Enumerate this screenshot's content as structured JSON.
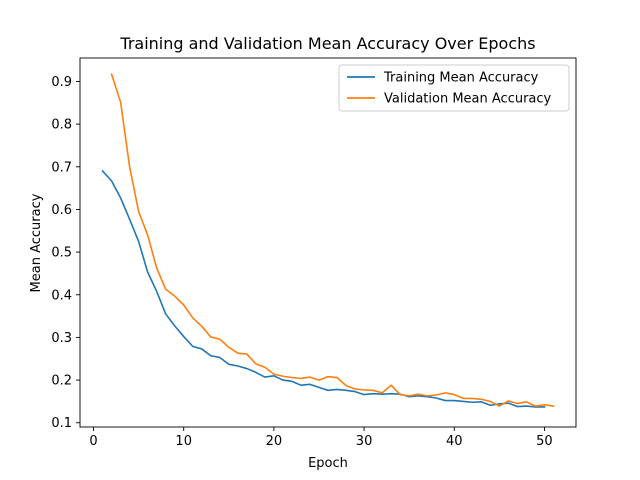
{
  "chart_data": {
    "type": "line",
    "title": "Training and Validation Mean Accuracy Over Epochs",
    "xlabel": "Epoch",
    "ylabel": "Mean Accuracy",
    "xlim": [
      -1.5,
      53.5
    ],
    "ylim": [
      0.09,
      0.955
    ],
    "xticks": [
      0,
      10,
      20,
      30,
      40,
      50
    ],
    "yticks": [
      0.1,
      0.2,
      0.3,
      0.4,
      0.5,
      0.6,
      0.7,
      0.8,
      0.9
    ],
    "legend_position": "top-right",
    "grid": false,
    "series": [
      {
        "name": "Training Mean Accuracy",
        "color": "#1f77b4",
        "x": [
          1,
          2,
          3,
          4,
          5,
          6,
          7,
          8,
          9,
          10,
          11,
          12,
          13,
          14,
          15,
          16,
          17,
          18,
          19,
          20,
          21,
          22,
          23,
          24,
          25,
          26,
          27,
          28,
          29,
          30,
          31,
          32,
          33,
          34,
          35,
          36,
          37,
          38,
          39,
          40,
          41,
          42,
          43,
          44,
          45,
          46,
          47,
          48,
          49,
          50
        ],
        "values": [
          0.69,
          0.667,
          0.627,
          0.577,
          0.525,
          0.453,
          0.408,
          0.355,
          0.327,
          0.302,
          0.279,
          0.273,
          0.257,
          0.253,
          0.237,
          0.233,
          0.227,
          0.218,
          0.207,
          0.21,
          0.2,
          0.197,
          0.188,
          0.19,
          0.183,
          0.176,
          0.178,
          0.176,
          0.173,
          0.166,
          0.168,
          0.167,
          0.168,
          0.167,
          0.161,
          0.163,
          0.161,
          0.158,
          0.152,
          0.152,
          0.15,
          0.148,
          0.149,
          0.141,
          0.144,
          0.146,
          0.138,
          0.139,
          0.137,
          0.137
        ]
      },
      {
        "name": "Validation Mean Accuracy",
        "color": "#ff7f0e",
        "x": [
          2,
          3,
          4,
          5,
          6,
          7,
          8,
          9,
          10,
          11,
          12,
          13,
          14,
          15,
          16,
          17,
          18,
          19,
          20,
          21,
          22,
          23,
          24,
          25,
          26,
          27,
          28,
          29,
          30,
          31,
          32,
          33,
          34,
          35,
          36,
          37,
          38,
          39,
          40,
          41,
          42,
          43,
          44,
          45,
          46,
          47,
          48,
          49,
          50,
          51
        ],
        "values": [
          0.917,
          0.852,
          0.7,
          0.595,
          0.54,
          0.463,
          0.413,
          0.397,
          0.376,
          0.346,
          0.326,
          0.301,
          0.296,
          0.277,
          0.263,
          0.261,
          0.238,
          0.23,
          0.214,
          0.209,
          0.206,
          0.204,
          0.207,
          0.2,
          0.208,
          0.206,
          0.187,
          0.179,
          0.177,
          0.176,
          0.17,
          0.188,
          0.166,
          0.163,
          0.167,
          0.163,
          0.165,
          0.17,
          0.166,
          0.157,
          0.157,
          0.155,
          0.15,
          0.139,
          0.151,
          0.145,
          0.149,
          0.139,
          0.142,
          0.139
        ]
      }
    ]
  }
}
